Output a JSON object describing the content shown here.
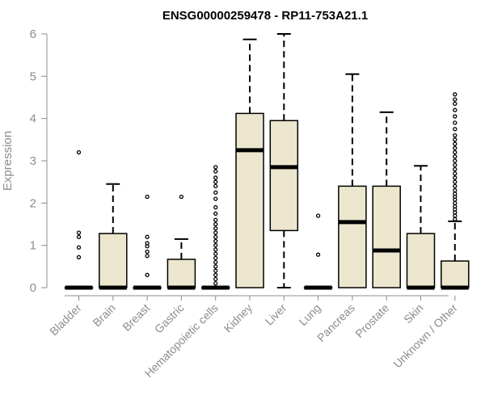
{
  "chart_data": {
    "type": "boxplot",
    "title": "ENSG00000259478 - RP11-753A21.1",
    "xlabel": "",
    "ylabel": "Expression",
    "ylim": [
      0,
      6
    ],
    "yticks": [
      0,
      1,
      2,
      3,
      4,
      5,
      6
    ],
    "grid": false,
    "box_color": "#ede6ce",
    "categories": [
      "Bladder",
      "Brain",
      "Breast",
      "Gastric",
      "Hematopoietic cells",
      "Kidney",
      "Liver",
      "Lung",
      "Pancreas",
      "Prostate",
      "Skin",
      "Unknown / Other"
    ],
    "boxes": [
      {
        "q1": 0,
        "median": 0,
        "q3": 0,
        "whisker_low": 0,
        "whisker_high": 0,
        "outliers": [
          0.72,
          0.95,
          1.2,
          1.3,
          3.2
        ]
      },
      {
        "q1": 0,
        "median": 0,
        "q3": 1.28,
        "whisker_low": 0,
        "whisker_high": 2.45,
        "outliers": []
      },
      {
        "q1": 0,
        "median": 0,
        "q3": 0,
        "whisker_low": 0,
        "whisker_high": 0,
        "outliers": [
          0.3,
          0.75,
          0.85,
          0.98,
          1.05,
          1.2,
          2.15
        ]
      },
      {
        "q1": 0,
        "median": 0,
        "q3": 0.67,
        "whisker_low": 0,
        "whisker_high": 1.15,
        "outliers": [
          2.15
        ]
      },
      {
        "q1": 0,
        "median": 0,
        "q3": 0,
        "whisker_low": 0,
        "whisker_high": 0,
        "outliers": [
          0.1,
          0.2,
          0.3,
          0.4,
          0.5,
          0.6,
          0.7,
          0.8,
          0.9,
          1.0,
          1.1,
          1.2,
          1.3,
          1.4,
          1.5,
          1.6,
          1.75,
          1.9,
          2.1,
          2.25,
          2.4,
          2.5,
          2.6,
          2.75,
          2.85
        ]
      },
      {
        "q1": 0,
        "median": 3.25,
        "q3": 4.12,
        "whisker_low": 0,
        "whisker_high": 5.87,
        "outliers": []
      },
      {
        "q1": 1.35,
        "median": 2.85,
        "q3": 3.95,
        "whisker_low": 0,
        "whisker_high": 6.0,
        "outliers": []
      },
      {
        "q1": 0,
        "median": 0,
        "q3": 0,
        "whisker_low": 0,
        "whisker_high": 0,
        "outliers": [
          0.78,
          1.7
        ]
      },
      {
        "q1": 0,
        "median": 1.55,
        "q3": 2.4,
        "whisker_low": 0,
        "whisker_high": 5.05,
        "outliers": []
      },
      {
        "q1": 0,
        "median": 0.88,
        "q3": 2.4,
        "whisker_low": 0,
        "whisker_high": 4.15,
        "outliers": []
      },
      {
        "q1": 0,
        "median": 0,
        "q3": 1.28,
        "whisker_low": 0,
        "whisker_high": 2.88,
        "outliers": []
      },
      {
        "q1": 0,
        "median": 0,
        "q3": 0.63,
        "whisker_low": 0,
        "whisker_high": 1.57,
        "outliers": [
          1.62,
          1.7,
          1.78,
          1.85,
          1.92,
          2.0,
          2.08,
          2.15,
          2.22,
          2.3,
          2.4,
          2.5,
          2.6,
          2.7,
          2.8,
          2.9,
          3.0,
          3.1,
          3.2,
          3.3,
          3.4,
          3.5,
          3.6,
          3.75,
          3.9,
          4.05,
          4.2,
          4.35,
          4.45,
          4.57
        ]
      }
    ]
  }
}
